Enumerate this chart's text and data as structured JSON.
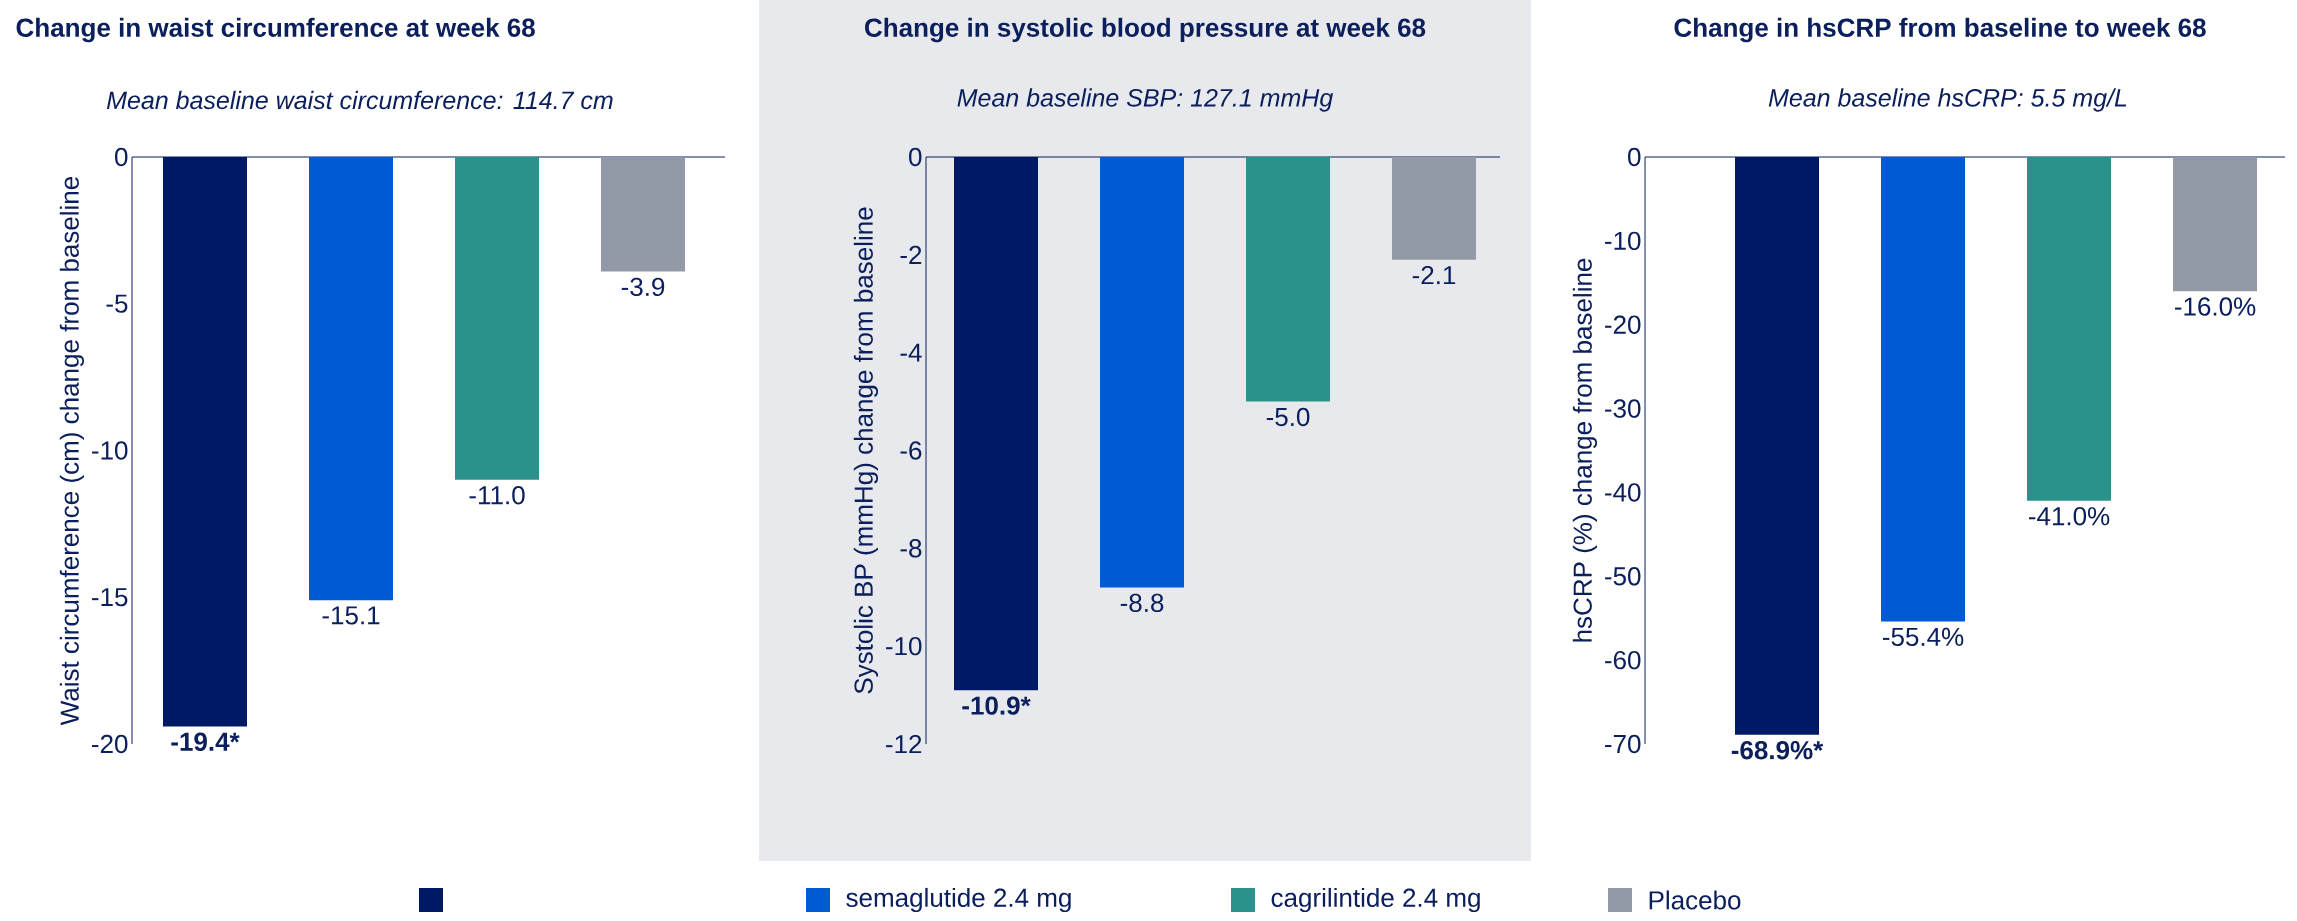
{
  "chart_data": [
    {
      "type": "bar",
      "title": "Change in waist circumference at week 68",
      "subtitle": "Mean baseline waist circumference: 114.7 cm",
      "ylabel": "Waist circumference (cm) change from baseline",
      "categories": [
        null
      ],
      "ylim": [
        -20,
        0
      ],
      "yticks": [
        0,
        -5,
        -10,
        -15,
        -20
      ],
      "legend": "bottom",
      "series": [
        {
          "color": "#001965",
          "values": [
            -19.4
          ],
          "value_labels": [
            "-19.4*"
          ]
        },
        {
          "name": "semaglutide 2.4 mg",
          "color": "#005ad2",
          "values": [
            -15.1
          ],
          "value_labels": [
            "-15.1"
          ]
        },
        {
          "name": "cagrilintide 2.4 mg",
          "color": "#2a918b",
          "values": [
            -11.0
          ],
          "value_labels": [
            "-11.0"
          ]
        },
        {
          "name": "Placebo",
          "color": "#939aa7",
          "values": [
            -3.9
          ],
          "value_labels": [
            "-3.9"
          ]
        }
      ]
    },
    {
      "type": "bar",
      "title": "Change in systolic blood pressure at week 68",
      "subtitle": "Mean baseline SBP: 127.1 mmHg",
      "ylabel": "Systolic BP (mmHg) change from baseline",
      "categories": [
        null
      ],
      "ylim": [
        -12,
        0
      ],
      "yticks": [
        0,
        -2,
        -4,
        -6,
        -8,
        -10,
        -12
      ],
      "series": [
        {
          "color": "#001965",
          "values": [
            -10.9
          ],
          "value_labels": [
            "-10.9*"
          ]
        },
        {
          "color": "#005ad2",
          "values": [
            -8.8
          ],
          "value_labels": [
            "-8.8"
          ]
        },
        {
          "color": "#2a918b",
          "values": [
            -5.0
          ],
          "value_labels": [
            "-5.0"
          ]
        },
        {
          "color": "#939aa7",
          "values": [
            -2.1
          ],
          "value_labels": [
            "-2.1"
          ]
        }
      ]
    },
    {
      "type": "bar",
      "title": "Change in hsCRP from baseline to week 68",
      "subtitle": "Mean baseline hsCRP: 5.5 mg/L",
      "ylabel": "hsCRP (%) change from baseline",
      "categories": [
        null
      ],
      "ylim": [
        -70,
        0
      ],
      "yticks": [
        0,
        -10,
        -20,
        -30,
        -40,
        -50,
        -60,
        -70
      ],
      "series": [
        {
          "color": "#001965",
          "values": [
            -68.9
          ],
          "value_labels": [
            "-68.9%*"
          ]
        },
        {
          "color": "#005ad2",
          "values": [
            -55.4
          ],
          "value_labels": [
            "-55.4%"
          ]
        },
        {
          "color": "#2a918b",
          "values": [
            -41.0
          ],
          "value_labels": [
            "-41.0%"
          ]
        },
        {
          "color": "#939aa7",
          "values": [
            -16.0
          ],
          "value_labels": [
            "-16.0%"
          ]
        }
      ]
    }
  ]
}
